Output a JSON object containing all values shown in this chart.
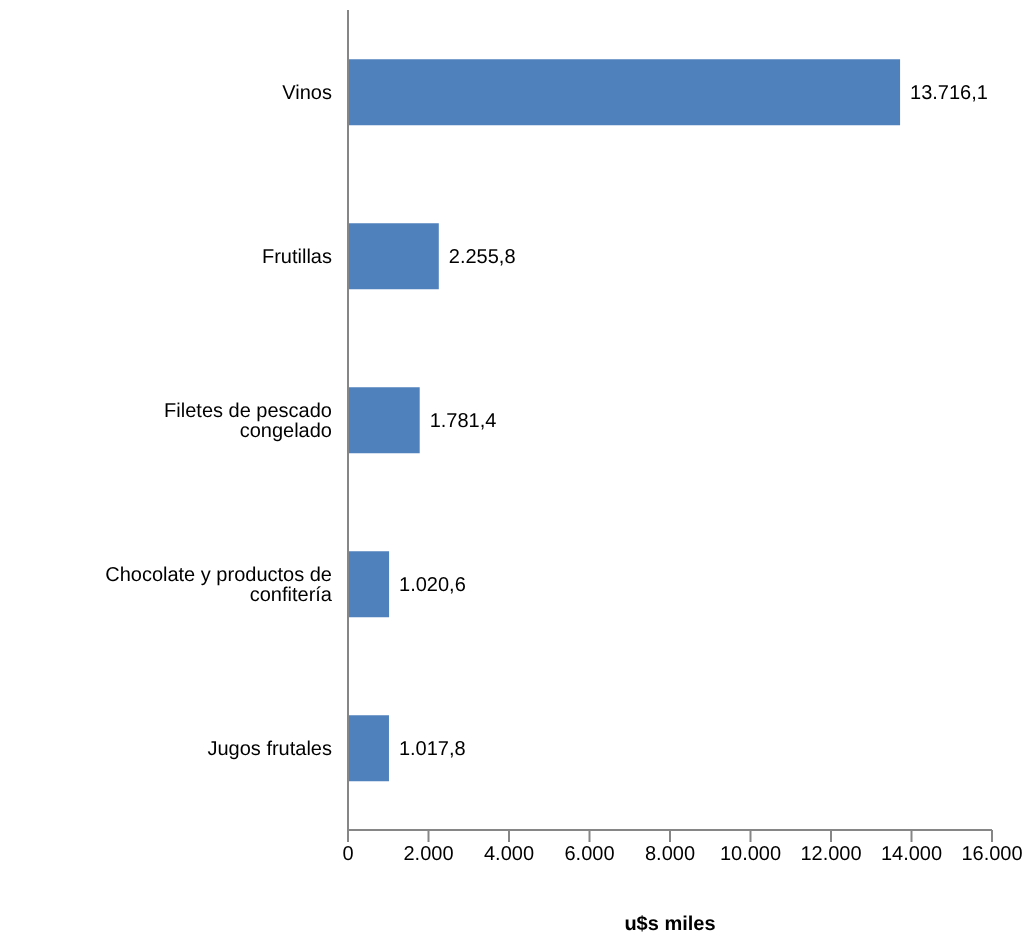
{
  "chart_data": {
    "type": "bar",
    "orientation": "horizontal",
    "categories": [
      "Vinos",
      "Frutillas",
      "Filetes de pescado congelado",
      "Chocolate y productos de confitería",
      "Jugos frutales"
    ],
    "values": [
      13716.1,
      2255.8,
      1781.4,
      1020.6,
      1017.8
    ],
    "value_labels": [
      "13.716,1",
      "2.255,8",
      "1.781,4",
      "1.020,6",
      "1.017,8"
    ],
    "color": "#4f81bd",
    "xlabel": "u$s miles",
    "xlim": [
      0,
      16000
    ],
    "xticks": [
      0,
      {
        "value": 2000,
        "label": "2.000"
      },
      {
        "value": 4000,
        "label": "4.000"
      },
      {
        "value": 6000,
        "label": "6.000"
      },
      {
        "value": 8000,
        "label": "8.000"
      },
      {
        "value": 10000,
        "label": "10.000"
      },
      {
        "value": 12000,
        "label": "12.000"
      },
      {
        "value": 14000,
        "label": "14.000"
      },
      {
        "value": 16000,
        "label": "16.000"
      }
    ],
    "grid": false,
    "legend": false
  }
}
